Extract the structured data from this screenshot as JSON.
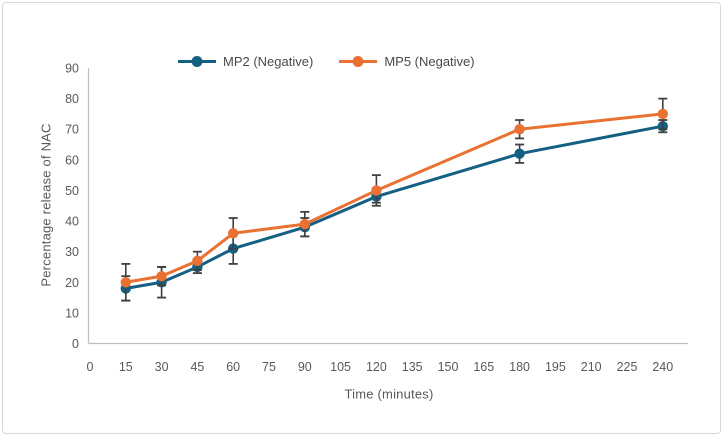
{
  "frame": {
    "background": "#FFFFFF",
    "border_color": "#D8D8D8"
  },
  "chart_data": {
    "type": "line",
    "title": "",
    "xlabel": "Time (minutes)",
    "ylabel": "Percentage release of NAC",
    "x_tick_labels": [
      0,
      15,
      30,
      45,
      60,
      75,
      90,
      105,
      120,
      135,
      150,
      165,
      180,
      195,
      210,
      225,
      240
    ],
    "y_ticks": [
      0,
      10,
      20,
      30,
      40,
      50,
      60,
      70,
      80,
      90
    ],
    "ylim": [
      0,
      90
    ],
    "x_unit_step": 15,
    "x": [
      15,
      30,
      45,
      60,
      90,
      120,
      180,
      240
    ],
    "series": [
      {
        "name": "MP2 (Negative)",
        "color": "#156082",
        "values": [
          18,
          20,
          25,
          31,
          38,
          48,
          62,
          71
        ],
        "errors": [
          4,
          5,
          2,
          5,
          3,
          2,
          3,
          2
        ]
      },
      {
        "name": "MP5 (Negative)",
        "color": "#E97132",
        "values": [
          20,
          22,
          27,
          36,
          39,
          50,
          70,
          75
        ],
        "errors": [
          6,
          3,
          3,
          5,
          4,
          5,
          3,
          5
        ]
      }
    ],
    "legend_position": "top-center",
    "grid": false,
    "axis_line_color": "#BFBFBF",
    "tick_label_color": "#595959",
    "error_bar_color": "#404040"
  }
}
